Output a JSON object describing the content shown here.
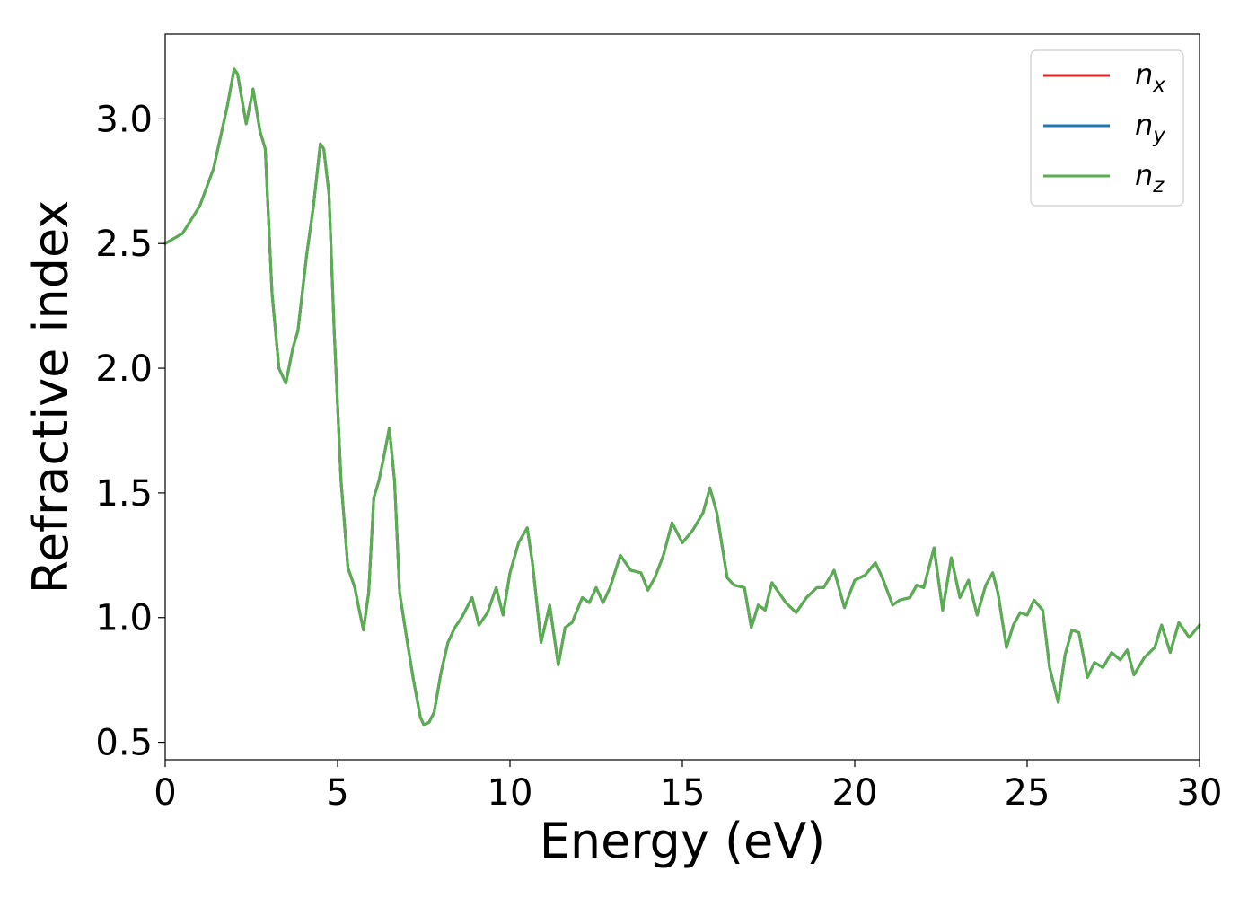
{
  "chart_data": {
    "type": "line",
    "xlabel": "Energy (eV)",
    "ylabel": "Refractive index",
    "xlim": [
      0,
      30
    ],
    "ylim": [
      0.43,
      3.34
    ],
    "xticks": [
      0,
      5,
      10,
      15,
      20,
      25,
      30
    ],
    "yticks": [
      0.5,
      1.0,
      1.5,
      2.0,
      2.5,
      3.0
    ],
    "xtick_labels": [
      "0",
      "5",
      "10",
      "15",
      "20",
      "25",
      "30"
    ],
    "ytick_labels": [
      "0.5",
      "1.0",
      "1.5",
      "2.0",
      "2.5",
      "3.0"
    ],
    "grid": false,
    "legend_position": "top-right",
    "series": [
      {
        "name": "n_x",
        "label_main": "n",
        "label_sub": "x",
        "color": "#d62728",
        "x": [
          0,
          0.5,
          1.0,
          1.4,
          1.8,
          2.0,
          2.1,
          2.35,
          2.55,
          2.75,
          2.9,
          3.1,
          3.3,
          3.5,
          3.7,
          3.85,
          4.1,
          4.3,
          4.5,
          4.6,
          4.75,
          4.9,
          5.1,
          5.3,
          5.5,
          5.6,
          5.75,
          5.9,
          6.05,
          6.2,
          6.35,
          6.5,
          6.65,
          6.8,
          7.0,
          7.2,
          7.4,
          7.5,
          7.65,
          7.8,
          8.0,
          8.2,
          8.4,
          8.6,
          8.9,
          9.1,
          9.35,
          9.6,
          9.8,
          10.0,
          10.25,
          10.5,
          10.65,
          10.9,
          11.15,
          11.4,
          11.6,
          11.8,
          12.1,
          12.3,
          12.5,
          12.7,
          12.9,
          13.2,
          13.5,
          13.8,
          14.0,
          14.2,
          14.45,
          14.7,
          15.0,
          15.3,
          15.6,
          15.8,
          16.0,
          16.3,
          16.5,
          16.8,
          17.0,
          17.2,
          17.4,
          17.6,
          17.8,
          18.0,
          18.3,
          18.6,
          18.9,
          19.1,
          19.4,
          19.7,
          20.0,
          20.3,
          20.6,
          20.8,
          21.1,
          21.3,
          21.6,
          21.8,
          22.0,
          22.3,
          22.55,
          22.8,
          23.05,
          23.3,
          23.55,
          23.8,
          24.0,
          24.15,
          24.4,
          24.6,
          24.8,
          25.0,
          25.2,
          25.45,
          25.65,
          25.9,
          26.1,
          26.3,
          26.5,
          26.75,
          26.95,
          27.2,
          27.45,
          27.7,
          27.9,
          28.1,
          28.4,
          28.7,
          28.9,
          29.15,
          29.4,
          29.7,
          30.0
        ],
        "y": [
          2.5,
          2.54,
          2.65,
          2.8,
          3.05,
          3.2,
          3.18,
          2.98,
          3.12,
          2.95,
          2.88,
          2.3,
          2.0,
          1.94,
          2.08,
          2.15,
          2.45,
          2.65,
          2.9,
          2.88,
          2.7,
          2.15,
          1.55,
          1.2,
          1.12,
          1.05,
          0.95,
          1.1,
          1.48,
          1.55,
          1.65,
          1.76,
          1.55,
          1.1,
          0.92,
          0.75,
          0.6,
          0.57,
          0.58,
          0.62,
          0.78,
          0.9,
          0.96,
          1.0,
          1.08,
          0.97,
          1.02,
          1.12,
          1.01,
          1.18,
          1.3,
          1.36,
          1.22,
          0.9,
          1.05,
          0.81,
          0.96,
          0.98,
          1.08,
          1.06,
          1.12,
          1.06,
          1.12,
          1.25,
          1.19,
          1.18,
          1.11,
          1.16,
          1.25,
          1.38,
          1.3,
          1.35,
          1.42,
          1.52,
          1.42,
          1.16,
          1.13,
          1.12,
          0.96,
          1.05,
          1.03,
          1.14,
          1.1,
          1.06,
          1.02,
          1.08,
          1.12,
          1.12,
          1.19,
          1.04,
          1.15,
          1.17,
          1.22,
          1.16,
          1.05,
          1.07,
          1.08,
          1.13,
          1.12,
          1.28,
          1.03,
          1.24,
          1.08,
          1.15,
          1.01,
          1.13,
          1.18,
          1.1,
          0.88,
          0.97,
          1.02,
          1.01,
          1.07,
          1.03,
          0.8,
          0.66,
          0.85,
          0.95,
          0.94,
          0.76,
          0.82,
          0.8,
          0.86,
          0.83,
          0.87,
          0.77,
          0.84,
          0.88,
          0.97,
          0.86,
          0.98,
          0.92,
          0.97
        ]
      },
      {
        "name": "n_y",
        "label_main": "n",
        "label_sub": "y",
        "color": "#1f77b4",
        "x": [
          0,
          0.5,
          1.0,
          1.4,
          1.8,
          2.0,
          2.1,
          2.35,
          2.55,
          2.75,
          2.9,
          3.1,
          3.3,
          3.5,
          3.7,
          3.85,
          4.1,
          4.3,
          4.5,
          4.6,
          4.75,
          4.9,
          5.1,
          5.3,
          5.5,
          5.6,
          5.75,
          5.9,
          6.05,
          6.2,
          6.35,
          6.5,
          6.65,
          6.8,
          7.0,
          7.2,
          7.4,
          7.5,
          7.65,
          7.8,
          8.0,
          8.2,
          8.4,
          8.6,
          8.9,
          9.1,
          9.35,
          9.6,
          9.8,
          10.0,
          10.25,
          10.5,
          10.65,
          10.9,
          11.15,
          11.4,
          11.6,
          11.8,
          12.1,
          12.3,
          12.5,
          12.7,
          12.9,
          13.2,
          13.5,
          13.8,
          14.0,
          14.2,
          14.45,
          14.7,
          15.0,
          15.3,
          15.6,
          15.8,
          16.0,
          16.3,
          16.5,
          16.8,
          17.0,
          17.2,
          17.4,
          17.6,
          17.8,
          18.0,
          18.3,
          18.6,
          18.9,
          19.1,
          19.4,
          19.7,
          20.0,
          20.3,
          20.6,
          20.8,
          21.1,
          21.3,
          21.6,
          21.8,
          22.0,
          22.3,
          22.55,
          22.8,
          23.05,
          23.3,
          23.55,
          23.8,
          24.0,
          24.15,
          24.4,
          24.6,
          24.8,
          25.0,
          25.2,
          25.45,
          25.65,
          25.9,
          26.1,
          26.3,
          26.5,
          26.75,
          26.95,
          27.2,
          27.45,
          27.7,
          27.9,
          28.1,
          28.4,
          28.7,
          28.9,
          29.15,
          29.4,
          29.7,
          30.0
        ],
        "y": [
          2.5,
          2.54,
          2.65,
          2.8,
          3.05,
          3.2,
          3.18,
          2.98,
          3.12,
          2.95,
          2.88,
          2.3,
          2.0,
          1.94,
          2.08,
          2.15,
          2.45,
          2.65,
          2.9,
          2.88,
          2.7,
          2.15,
          1.55,
          1.2,
          1.12,
          1.05,
          0.95,
          1.1,
          1.48,
          1.55,
          1.65,
          1.76,
          1.55,
          1.1,
          0.92,
          0.75,
          0.6,
          0.57,
          0.58,
          0.62,
          0.78,
          0.9,
          0.96,
          1.0,
          1.08,
          0.97,
          1.02,
          1.12,
          1.01,
          1.18,
          1.3,
          1.36,
          1.22,
          0.9,
          1.05,
          0.81,
          0.96,
          0.98,
          1.08,
          1.06,
          1.12,
          1.06,
          1.12,
          1.25,
          1.19,
          1.18,
          1.11,
          1.16,
          1.25,
          1.38,
          1.3,
          1.35,
          1.42,
          1.52,
          1.42,
          1.16,
          1.13,
          1.12,
          0.96,
          1.05,
          1.03,
          1.14,
          1.1,
          1.06,
          1.02,
          1.08,
          1.12,
          1.12,
          1.19,
          1.04,
          1.15,
          1.17,
          1.22,
          1.16,
          1.05,
          1.07,
          1.08,
          1.13,
          1.12,
          1.28,
          1.03,
          1.24,
          1.08,
          1.15,
          1.01,
          1.13,
          1.18,
          1.1,
          0.88,
          0.97,
          1.02,
          1.01,
          1.07,
          1.03,
          0.8,
          0.66,
          0.85,
          0.95,
          0.94,
          0.76,
          0.82,
          0.8,
          0.86,
          0.83,
          0.87,
          0.77,
          0.84,
          0.88,
          0.97,
          0.86,
          0.98,
          0.92,
          0.97
        ]
      },
      {
        "name": "n_z",
        "label_main": "n",
        "label_sub": "z",
        "color": "#5aae50",
        "x": [
          0,
          0.5,
          1.0,
          1.4,
          1.8,
          2.0,
          2.1,
          2.35,
          2.55,
          2.75,
          2.9,
          3.1,
          3.3,
          3.5,
          3.7,
          3.85,
          4.1,
          4.3,
          4.5,
          4.6,
          4.75,
          4.9,
          5.1,
          5.3,
          5.5,
          5.6,
          5.75,
          5.9,
          6.05,
          6.2,
          6.35,
          6.5,
          6.65,
          6.8,
          7.0,
          7.2,
          7.4,
          7.5,
          7.65,
          7.8,
          8.0,
          8.2,
          8.4,
          8.6,
          8.9,
          9.1,
          9.35,
          9.6,
          9.8,
          10.0,
          10.25,
          10.5,
          10.65,
          10.9,
          11.15,
          11.4,
          11.6,
          11.8,
          12.1,
          12.3,
          12.5,
          12.7,
          12.9,
          13.2,
          13.5,
          13.8,
          14.0,
          14.2,
          14.45,
          14.7,
          15.0,
          15.3,
          15.6,
          15.8,
          16.0,
          16.3,
          16.5,
          16.8,
          17.0,
          17.2,
          17.4,
          17.6,
          17.8,
          18.0,
          18.3,
          18.6,
          18.9,
          19.1,
          19.4,
          19.7,
          20.0,
          20.3,
          20.6,
          20.8,
          21.1,
          21.3,
          21.6,
          21.8,
          22.0,
          22.3,
          22.55,
          22.8,
          23.05,
          23.3,
          23.55,
          23.8,
          24.0,
          24.15,
          24.4,
          24.6,
          24.8,
          25.0,
          25.2,
          25.45,
          25.65,
          25.9,
          26.1,
          26.3,
          26.5,
          26.75,
          26.95,
          27.2,
          27.45,
          27.7,
          27.9,
          28.1,
          28.4,
          28.7,
          28.9,
          29.15,
          29.4,
          29.7,
          30.0
        ],
        "y": [
          2.5,
          2.54,
          2.65,
          2.8,
          3.05,
          3.2,
          3.18,
          2.98,
          3.12,
          2.95,
          2.88,
          2.3,
          2.0,
          1.94,
          2.08,
          2.15,
          2.45,
          2.65,
          2.9,
          2.88,
          2.7,
          2.15,
          1.55,
          1.2,
          1.12,
          1.05,
          0.95,
          1.1,
          1.48,
          1.55,
          1.65,
          1.76,
          1.55,
          1.1,
          0.92,
          0.75,
          0.6,
          0.57,
          0.58,
          0.62,
          0.78,
          0.9,
          0.96,
          1.0,
          1.08,
          0.97,
          1.02,
          1.12,
          1.01,
          1.18,
          1.3,
          1.36,
          1.22,
          0.9,
          1.05,
          0.81,
          0.96,
          0.98,
          1.08,
          1.06,
          1.12,
          1.06,
          1.12,
          1.25,
          1.19,
          1.18,
          1.11,
          1.16,
          1.25,
          1.38,
          1.3,
          1.35,
          1.42,
          1.52,
          1.42,
          1.16,
          1.13,
          1.12,
          0.96,
          1.05,
          1.03,
          1.14,
          1.1,
          1.06,
          1.02,
          1.08,
          1.12,
          1.12,
          1.19,
          1.04,
          1.15,
          1.17,
          1.22,
          1.16,
          1.05,
          1.07,
          1.08,
          1.13,
          1.12,
          1.28,
          1.03,
          1.24,
          1.08,
          1.15,
          1.01,
          1.13,
          1.18,
          1.1,
          0.88,
          0.97,
          1.02,
          1.01,
          1.07,
          1.03,
          0.8,
          0.66,
          0.85,
          0.95,
          0.94,
          0.76,
          0.82,
          0.8,
          0.86,
          0.83,
          0.87,
          0.77,
          0.84,
          0.88,
          0.97,
          0.86,
          0.98,
          0.92,
          0.97
        ]
      }
    ]
  }
}
